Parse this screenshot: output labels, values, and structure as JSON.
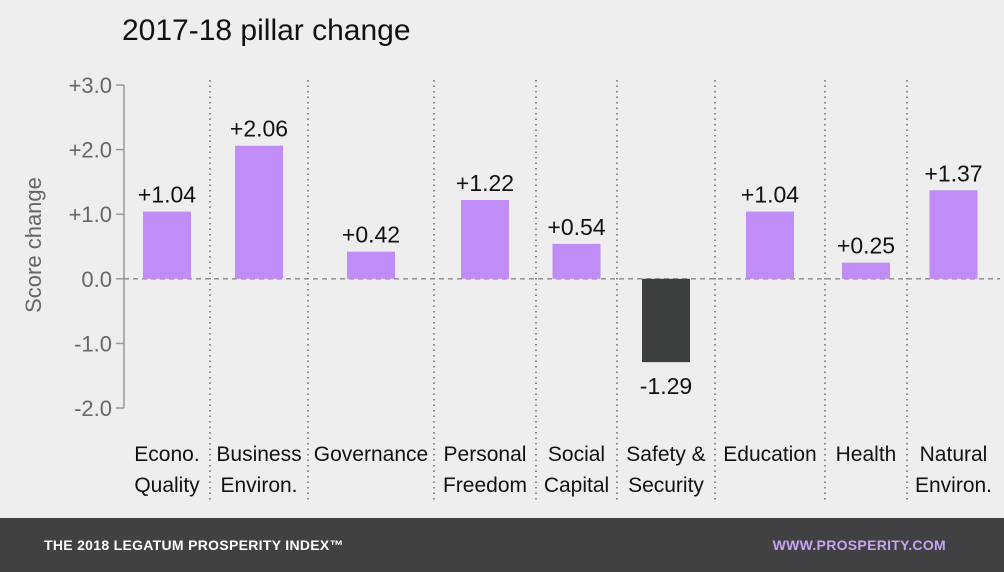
{
  "chart_data": {
    "type": "bar",
    "title": "2017-18 pillar change",
    "ylabel": "Score change",
    "ylim": [
      -2.0,
      3.0
    ],
    "yticks": [
      {
        "value": 3,
        "label": "+3.0"
      },
      {
        "value": 2,
        "label": "+2.0"
      },
      {
        "value": 1,
        "label": "+1.0"
      },
      {
        "value": 0,
        "label": "0.0"
      },
      {
        "value": -1,
        "label": "-1.0"
      },
      {
        "value": -2,
        "label": "-2.0"
      }
    ],
    "categories": [
      [
        "Econo.",
        "Quality"
      ],
      [
        "Business",
        "Environ."
      ],
      [
        "Governance"
      ],
      [
        "Personal",
        "Freedom"
      ],
      [
        "Social",
        "Capital"
      ],
      [
        "Safety &",
        "Security"
      ],
      [
        "Education"
      ],
      [
        "Health"
      ],
      [
        "Natural",
        "Environ."
      ]
    ],
    "values": [
      1.04,
      2.06,
      0.42,
      1.22,
      0.54,
      -1.29,
      1.04,
      0.25,
      1.37
    ],
    "value_labels": [
      "+1.04",
      "+2.06",
      "+0.42",
      "+1.22",
      "+0.54",
      "-1.29",
      "+1.04",
      "+0.25",
      "+1.37"
    ],
    "grid": false,
    "colors": {
      "positive": "#c08cf5",
      "negative": "#3c3f40"
    }
  },
  "footer": {
    "left": "THE 2018 LEGATUM PROSPERITY INDEX™",
    "right": "WWW.PROSPERITY.COM"
  }
}
